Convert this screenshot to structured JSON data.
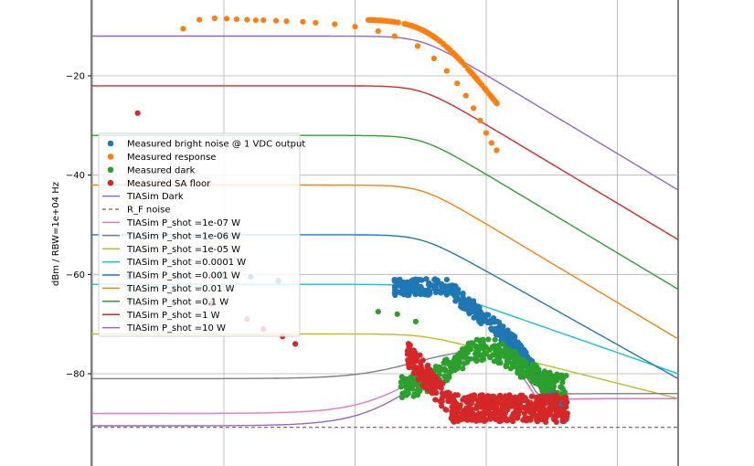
{
  "chart_data": {
    "type": "scatter",
    "title": "",
    "xlabel": "",
    "ylabel": "dBm / RBW=1e+04 Hz",
    "ylim": [
      -100,
      1.5
    ],
    "yticks": [
      -80,
      -60,
      -40,
      -20
    ],
    "xscale": "log",
    "x_grid_decades": [
      10000.0,
      100000.0,
      1000000.0,
      10000000.0,
      100000000.0,
      1000000000.0
    ],
    "grid": true,
    "legend_location": "center-left",
    "colors": {
      "blue": "#1f77b4",
      "orange": "#ff7f0e",
      "green": "#2ca02c",
      "red": "#d62728",
      "purple": "#9467bd",
      "brown": "#8c564b",
      "pink": "#e377c2",
      "gray": "#7f7f7f",
      "olive": "#bcbd22",
      "cyan": "#17becf"
    },
    "series": [
      {
        "name": "Measured bright noise @ 1 VDC output",
        "kind": "scatter",
        "color": "#1f77b4"
      },
      {
        "name": "Measured response",
        "kind": "scatter",
        "color": "#ff7f0e"
      },
      {
        "name": "Measured dark",
        "kind": "scatter",
        "color": "#2ca02c"
      },
      {
        "name": "Measured SA floor",
        "kind": "scatter",
        "color": "#d62728"
      },
      {
        "name": "TIASim Dark",
        "kind": "line",
        "color": "#9467bd"
      },
      {
        "name": "R_F noise",
        "kind": "dashed",
        "color": "#8c564b"
      },
      {
        "name": "TIASim P_shot =1e-07 W",
        "kind": "line",
        "color": "#e377c2"
      },
      {
        "name": "TIASim P_shot =1e-06 W",
        "kind": "line",
        "color": "#7f7f7f"
      },
      {
        "name": "TIASim P_shot =1e-05 W",
        "kind": "line",
        "color": "#bcbd22"
      },
      {
        "name": "TIASim P_shot =0.0001 W",
        "kind": "line",
        "color": "#17becf"
      },
      {
        "name": "TIASim P_shot =0.001 W",
        "kind": "line",
        "color": "#1f77b4"
      },
      {
        "name": "TIASim P_shot =0.01 W",
        "kind": "line",
        "color": "#ff7f0e"
      },
      {
        "name": "TIASim P_shot =0.1 W",
        "kind": "line",
        "color": "#2ca02c"
      },
      {
        "name": "TIASim P_shot =1 W",
        "kind": "line",
        "color": "#d62728"
      },
      {
        "name": "TIASim P_shot =10 W",
        "kind": "line",
        "color": "#9467bd"
      }
    ],
    "shot_lines_flat_level": [
      {
        "series": "TIASim P_shot =1e-05 W",
        "y": -72,
        "rolloff_to": -85
      },
      {
        "series": "TIASim P_shot =0.0001 W",
        "y": -62,
        "rolloff_to": -80
      },
      {
        "series": "TIASim P_shot =0.001 W",
        "y": -52,
        "rolloff_to": -81
      },
      {
        "series": "TIASim P_shot =0.01 W",
        "y": -42,
        "rolloff_to": -73
      },
      {
        "series": "TIASim P_shot =0.1 W",
        "y": -32,
        "rolloff_to": -63
      },
      {
        "series": "TIASim P_shot =1 W",
        "y": -22,
        "rolloff_to": -53
      },
      {
        "series": "TIASim P_shot =10 W",
        "y": -12,
        "rolloff_to": -43
      }
    ],
    "low_power_lines": [
      {
        "series": "TIASim Dark",
        "y_low": -90.5,
        "peak": -75,
        "end": -85
      },
      {
        "series": "TIASim P_shot =1e-07 W",
        "y_low": -88,
        "peak": -75,
        "end": -85
      },
      {
        "series": "TIASim P_shot =1e-06 W",
        "y_low": -81,
        "peak": -74.5,
        "end": -84
      }
    ],
    "r_f_noise_level": -90.8,
    "measured_response_points": [
      [
        49000.0,
        -10.5
      ],
      [
        65000.0,
        -8.7
      ],
      [
        85000.0,
        -8.4
      ],
      [
        105000.0,
        -8.5
      ],
      [
        125000.0,
        -8.6
      ],
      [
        150000.0,
        -8.7
      ],
      [
        175000.0,
        -8.8
      ],
      [
        200000.0,
        -8.8
      ],
      [
        250000.0,
        -8.9
      ],
      [
        300000.0,
        -9.0
      ],
      [
        400000.0,
        -9.1
      ],
      [
        500000.0,
        -9.3
      ],
      [
        700000.0,
        -9.6
      ],
      [
        1000000.0,
        -10.1
      ],
      [
        1500000.0,
        -11
      ],
      [
        2000000.0,
        -12
      ],
      [
        3000000.0,
        -14
      ],
      [
        4000000.0,
        -16.5
      ],
      [
        5000000.0,
        -19
      ],
      [
        6000000.0,
        -21.5
      ],
      [
        7000000.0,
        -24
      ],
      [
        8000000.0,
        -26.5
      ],
      [
        9000000.0,
        -29
      ],
      [
        10000000.0,
        -31.5
      ],
      [
        11000000.0,
        -33.5
      ],
      [
        12000000.0,
        -35
      ]
    ],
    "measured_outliers": [
      [
        22000.0,
        -27.5
      ]
    ]
  }
}
